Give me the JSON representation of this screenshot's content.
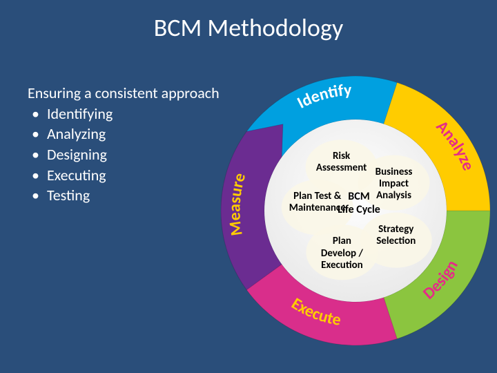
{
  "title": "BCM Methodology",
  "intro": {
    "heading": "Ensuring a consistent approach",
    "items": [
      "Identifying",
      "Analyzing",
      "Designing",
      "Executing",
      "Testing"
    ]
  },
  "cycle": {
    "type": "circular-arrow",
    "aspect": 1,
    "background": "#2a4e7a",
    "center_label": "BCM\nLife Cycle",
    "arcs": [
      {
        "name": "identify",
        "label": "Identify",
        "fill": "#00a0e0",
        "label_color": "#ffffff",
        "start_deg": 306,
        "end_deg": 18,
        "fontsize": 24
      },
      {
        "name": "analyze",
        "label": "Analyze",
        "fill": "#ffcc00",
        "label_color": "#e52b88",
        "start_deg": 18,
        "end_deg": 90,
        "fontsize": 24
      },
      {
        "name": "design",
        "label": "Design",
        "fill": "#8bc53f",
        "label_color": "#e52b88",
        "start_deg": 90,
        "end_deg": 162,
        "fontsize": 24
      },
      {
        "name": "execute",
        "label": "Execute",
        "fill": "#d92e8b",
        "label_color": "#ffcc00",
        "start_deg": 162,
        "end_deg": 234,
        "fontsize": 24
      },
      {
        "name": "measure",
        "label": "Measure",
        "fill": "#6b2c91",
        "label_color": "#ffcc00",
        "start_deg": 234,
        "end_deg": 306,
        "fontsize": 24
      }
    ],
    "inner_labels": [
      {
        "name": "risk-assessment",
        "text": "Risk\nAssessment",
        "angle_deg": 342,
        "radius_pct": 0.5
      },
      {
        "name": "business-impact",
        "text": "Business\nImpact\nAnalysis",
        "angle_deg": 54,
        "radius_pct": 0.52
      },
      {
        "name": "strategy-selection",
        "text": "Strategy\nSelection",
        "angle_deg": 126,
        "radius_pct": 0.55
      },
      {
        "name": "plan-develop",
        "text": "Plan\nDevelop /\nExecution",
        "angle_deg": 198,
        "radius_pct": 0.48
      },
      {
        "name": "plan-test",
        "text": "Plan Test &\nMaintenance",
        "angle_deg": 275,
        "radius_pct": 0.42
      }
    ],
    "ring_outer_r": 195,
    "ring_inner_r": 132,
    "inner_disc_fill": "#f2f2f2",
    "inner_bubble_fill": "#faf7e6"
  }
}
